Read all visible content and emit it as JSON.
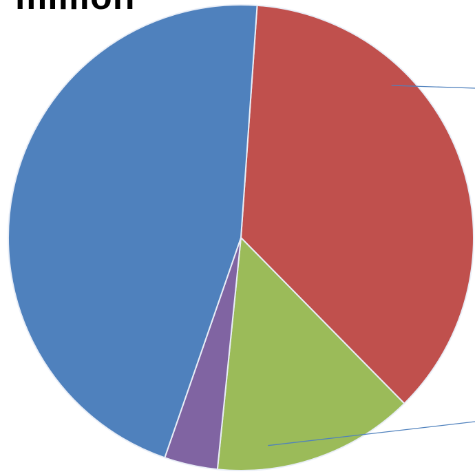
{
  "chart_data": {
    "type": "pie",
    "title": "million",
    "labels_visible": false,
    "slices": [
      {
        "value": 36.5,
        "color": "#c0504d"
      },
      {
        "value": 14.0,
        "color": "#9bbb59"
      },
      {
        "value": 3.7,
        "color": "#8064a2"
      },
      {
        "value": 45.8,
        "color": "#4f81bd"
      }
    ],
    "start_angle_deg": 4,
    "direction": "clockwise",
    "leader_line_color": "#4f81bd"
  }
}
